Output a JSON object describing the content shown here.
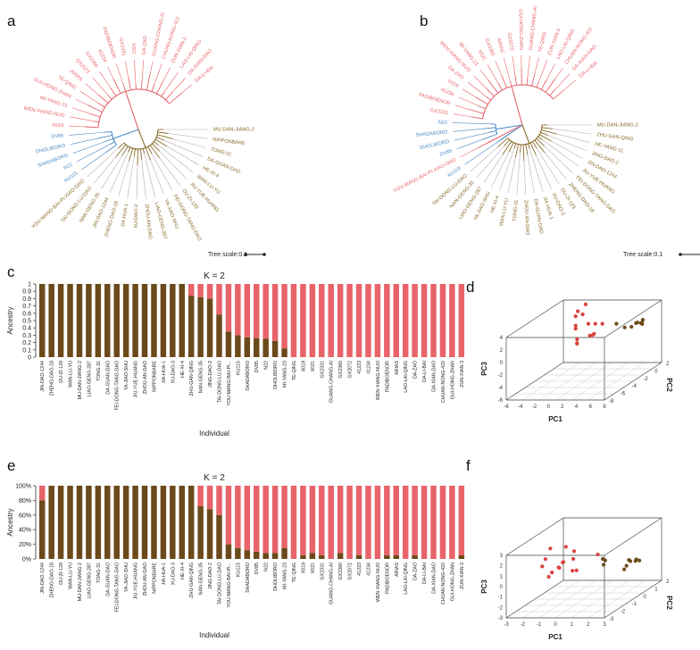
{
  "panels": {
    "a": "a",
    "b": "b",
    "c": "c",
    "d": "d",
    "e": "e",
    "f": "f"
  },
  "tree_scale_label": "Tree scale:0.1",
  "colors": {
    "red": "#e8636a",
    "brown": "#6b4a1a",
    "blue": "#4a8ac4",
    "tree_brown": "#8a6a2a",
    "grey": "#b0b0b0"
  },
  "tree_a": {
    "labels": [
      {
        "t": "MU-DAN-JIANG-2",
        "c": "brown"
      },
      {
        "t": "NIPPONBARE",
        "c": "brown"
      },
      {
        "t": "TONG-31",
        "c": "brown"
      },
      {
        "t": "DA-GUAN-DAO",
        "c": "brown"
      },
      {
        "t": "HE-XI-4",
        "c": "brown"
      },
      {
        "t": "WAN-LU-YU",
        "c": "brown"
      },
      {
        "t": "JIU-YUE-HUANG",
        "c": "brown"
      },
      {
        "t": "DU-ZI-129",
        "c": "brown"
      },
      {
        "t": "FEI-DONG-TANG-DAO",
        "c": "brown"
      },
      {
        "t": "YA-JIAO-SHU",
        "c": "brown"
      },
      {
        "t": "LIAO-GENG-287",
        "c": "brown"
      },
      {
        "t": "ZHOU-AN-DAO",
        "c": "brown"
      },
      {
        "t": "XU-DAO-3",
        "c": "brown"
      },
      {
        "t": "JIA-HUA-1",
        "c": "brown"
      },
      {
        "t": "ZHENG-DAO-18",
        "c": "brown"
      },
      {
        "t": "JIN-DAO-1244",
        "c": "brown"
      },
      {
        "t": "NAN-GENG-35",
        "c": "brown"
      },
      {
        "t": "TAI-DONG-LU-DAO",
        "c": "brown"
      },
      {
        "t": "YOU-MANG-BAI-PI-XIAO-DAO",
        "c": "brown"
      },
      {
        "t": "KU115",
        "c": "blue"
      },
      {
        "t": "N22",
        "c": "blue"
      },
      {
        "t": "SHADABORO",
        "c": "blue"
      },
      {
        "t": "DHOLIBORO",
        "c": "blue"
      },
      {
        "t": "DV85",
        "c": "blue"
      },
      {
        "t": "X019",
        "c": "red"
      },
      {
        "t": "WEN-XIANG-NUO",
        "c": "red"
      },
      {
        "t": "MI-YANG-23",
        "c": "red"
      },
      {
        "t": "GUI-HONG-ZHAN",
        "c": "red"
      },
      {
        "t": "TE-QING",
        "c": "red"
      },
      {
        "t": "ARIAS",
        "c": "red"
      },
      {
        "t": "GX2072",
        "c": "red"
      },
      {
        "t": "GX2360",
        "c": "red"
      },
      {
        "t": "41234",
        "c": "red"
      },
      {
        "t": "PADIBOENOR",
        "c": "red"
      },
      {
        "t": "GX2331",
        "c": "red"
      },
      {
        "t": "X021",
        "c": "red"
      },
      {
        "t": "DA-ZAO",
        "c": "red"
      },
      {
        "t": "GUANG-CHANG-AI",
        "c": "red"
      },
      {
        "t": "CHUAN-NONG-422",
        "c": "red"
      },
      {
        "t": "ZUN-XIAN-3",
        "c": "red"
      },
      {
        "t": "LAO-LAI-QING",
        "c": "red"
      },
      {
        "t": "DA-XIAN-DAO",
        "c": "red"
      },
      {
        "t": "DA-LI-BAI",
        "c": "red"
      }
    ]
  },
  "tree_b": {
    "labels": [
      {
        "t": "MU-DAN-JIANG-2",
        "c": "brown"
      },
      {
        "t": "ZHU-GAN-QING",
        "c": "brown"
      },
      {
        "t": "HE-YANG-11",
        "c": "brown"
      },
      {
        "t": "JING-DAO-2",
        "c": "brown"
      },
      {
        "t": "JIN-DAO-1244",
        "c": "brown"
      },
      {
        "t": "JIU-YUE-HUANG",
        "c": "brown"
      },
      {
        "t": "FEI-DONG-TANG-DAO",
        "c": "brown"
      },
      {
        "t": "ZHENG-DAO-18",
        "c": "brown"
      },
      {
        "t": "DU-ZI-129",
        "c": "brown"
      },
      {
        "t": "XU-DAO-3",
        "c": "brown"
      },
      {
        "t": "JIA-HUA-1",
        "c": "brown"
      },
      {
        "t": "DA-GUAN-DAO",
        "c": "brown"
      },
      {
        "t": "ZHOU-AN-DAO",
        "c": "brown"
      },
      {
        "t": "TONG-31",
        "c": "brown"
      },
      {
        "t": "WAN-LU-YU",
        "c": "brown"
      },
      {
        "t": "HE-XI-4",
        "c": "brown"
      },
      {
        "t": "YA-JIAO-SHU",
        "c": "brown"
      },
      {
        "t": "LIAO-GENG-287",
        "c": "brown"
      },
      {
        "t": "NAN-GENG-35",
        "c": "brown"
      },
      {
        "t": "TAI-DONG-LU-DAO",
        "c": "brown"
      },
      {
        "t": "KU115",
        "c": "blue"
      },
      {
        "t": "YOU-MANG-BAI-PI-XIAO-DAO",
        "c": "red"
      },
      {
        "t": "DV85",
        "c": "blue"
      },
      {
        "t": "DHOLIBORO",
        "c": "blue"
      },
      {
        "t": "SHADABORO",
        "c": "blue"
      },
      {
        "t": "N22",
        "c": "blue"
      },
      {
        "t": "GX2331",
        "c": "red"
      },
      {
        "t": "PADIBOENOR",
        "c": "red"
      },
      {
        "t": "41234",
        "c": "red"
      },
      {
        "t": "X019",
        "c": "red"
      },
      {
        "t": "DA-ZAO",
        "c": "red"
      },
      {
        "t": "WEN-XIANG-NUO",
        "c": "red"
      },
      {
        "t": "MI-YANG-23",
        "c": "red"
      },
      {
        "t": "X021",
        "c": "red"
      },
      {
        "t": "GX2360",
        "c": "red"
      },
      {
        "t": "ARIAS",
        "c": "red"
      },
      {
        "t": "GX2072",
        "c": "red"
      },
      {
        "t": "GUI-HONG-ZHAN",
        "c": "red"
      },
      {
        "t": "GUANG-CHANG-AI",
        "c": "red"
      },
      {
        "t": "TE-QING",
        "c": "red"
      },
      {
        "t": "ZUN-XIAN-3",
        "c": "red"
      },
      {
        "t": "LAO-LAI-QING",
        "c": "red"
      },
      {
        "t": "CHUAN-NONG-422",
        "c": "red"
      },
      {
        "t": "DA-XIAN-DAO",
        "c": "red"
      },
      {
        "t": "DA-LI-BAI",
        "c": "red"
      }
    ]
  },
  "chart_data": [
    {
      "panel": "c",
      "type": "bar",
      "stacked": true,
      "title": "K = 2",
      "xlabel": "Individual",
      "ylabel": "Ancestry",
      "ylim": [
        0,
        1
      ],
      "yticks": [
        "0",
        "0.1",
        "0.2",
        "0.3",
        "0.4",
        "0.5",
        "0.6",
        "0.7",
        "0.8",
        "0.9",
        "1"
      ],
      "categories": [
        "JIN-DAO-1244",
        "ZHENG-DAO-18",
        "DU-ZI-129",
        "WAN-LU-YU",
        "MU-DAN-JIANG-2",
        "LIAO-GENG-287",
        "TONG-31",
        "DA-GUAN-DAO",
        "FEI-DONG-TANG-DAO",
        "YA-JIAO-SHU",
        "JIU-YUE-HUANG",
        "ZHOU-AN-DAO",
        "NIPPONBARE",
        "JIA-HUA-1",
        "XU-DAO-3",
        "HE-XI-4",
        "ZHU-GAN-QING",
        "NAN-GENG-35",
        "JING-DAO-2",
        "TAI-DONG-LU-DAO",
        "YOU-MANG-BAI-PI...",
        "KU115",
        "SHADABORO",
        "DV85",
        "N22",
        "DHOLIBORO",
        "MI-YANG-23",
        "TE-QING",
        "X019",
        "X021",
        "GX2331",
        "GUANG-CHANG-AI",
        "GX2360",
        "GX2072",
        "41223",
        "41234",
        "WEN-XIANG-NUO",
        "PADIBOENOR",
        "ARIAS",
        "LAO-LAI-QING",
        "DA-ZAO",
        "DA-LI-BAI",
        "DA-XIAN-DAO",
        "CHUAN-NONG-422",
        "GUI-HONG-ZHAN",
        "ZUN-XIAN-3"
      ],
      "series": [
        {
          "name": "",
          "color": "#6b4a1a",
          "values": [
            1,
            1,
            1,
            1,
            1,
            1,
            1,
            1,
            1,
            1,
            1,
            1,
            1,
            1,
            1,
            1,
            0.84,
            0.82,
            0.8,
            0.58,
            0.35,
            0.3,
            0.27,
            0.26,
            0.25,
            0.22,
            0.12,
            0,
            0,
            0,
            0,
            0,
            0,
            0,
            0,
            0,
            0,
            0,
            0,
            0,
            0,
            0,
            0,
            0,
            0,
            0
          ]
        },
        {
          "name": "",
          "color": "#e8636a",
          "values": [
            0,
            0,
            0,
            0,
            0,
            0,
            0,
            0,
            0,
            0,
            0,
            0,
            0,
            0,
            0,
            0,
            0.16,
            0.18,
            0.2,
            0.42,
            0.65,
            0.7,
            0.73,
            0.74,
            0.75,
            0.78,
            0.88,
            1,
            1,
            1,
            1,
            1,
            1,
            1,
            1,
            1,
            1,
            1,
            1,
            1,
            1,
            1,
            1,
            1,
            1,
            1
          ]
        }
      ]
    },
    {
      "panel": "e",
      "type": "bar",
      "stacked": true,
      "title": "K = 2",
      "xlabel": "Individual",
      "ylabel": "Ancestry",
      "ylim": [
        0,
        100
      ],
      "yticks": [
        "0%",
        "20%",
        "40%",
        "60%",
        "80%",
        "100%"
      ],
      "categories": [
        "JIN-DAO-1244",
        "ZHENG-DAO-18",
        "DU-ZI-129",
        "WAN-LU-YU",
        "MU-DAN-JIANG-2",
        "LIAO-GENG-287",
        "TONG-31",
        "DA-GUAN-DAO",
        "FEI-DONG-TANG-DAO",
        "YA-JIAO-SHU",
        "JIU-YUE-HUANG",
        "ZHOU-AN-DAO",
        "NIPPONBARE",
        "JIA-HUA-1",
        "XU-DAO-3",
        "HE-XI-4",
        "ZHU-GAN-QING",
        "NAN-GENG-35",
        "JING-DAO-2",
        "TAI-DONG-LU-DAO",
        "YOU-MANG-BAI-PI...",
        "KU115",
        "SHADABORO",
        "DV85",
        "N22",
        "DHOLIBORO",
        "MI-YANG-23",
        "TE-QING",
        "X019",
        "X021",
        "GX2331",
        "GUANG-CHANG-AI",
        "GX2360",
        "GX2072",
        "41223",
        "41234",
        "WEN-XIANG-NUO",
        "PADIBOENOR",
        "ARIAS",
        "LAO-LAI-QING",
        "DA-ZAO",
        "DA-LI-BAI",
        "DA-XIAN-DAO",
        "CHUAN-NONG-422",
        "GUI-HONG-ZHAN",
        "ZUN-XIAN-3"
      ],
      "series": [
        {
          "name": "",
          "color": "#6b4a1a",
          "values": [
            80,
            100,
            100,
            100,
            100,
            100,
            100,
            100,
            100,
            100,
            100,
            100,
            100,
            100,
            100,
            100,
            100,
            72,
            68,
            60,
            20,
            15,
            12,
            10,
            8,
            8,
            15,
            0,
            5,
            8,
            5,
            0,
            8,
            0,
            5,
            0,
            0,
            5,
            5,
            0,
            5,
            0,
            0,
            0,
            0,
            5
          ]
        },
        {
          "name": "",
          "color": "#e8636a",
          "values": [
            20,
            0,
            0,
            0,
            0,
            0,
            0,
            0,
            0,
            0,
            0,
            0,
            0,
            0,
            0,
            0,
            0,
            28,
            32,
            40,
            80,
            85,
            88,
            90,
            92,
            92,
            85,
            100,
            95,
            92,
            95,
            100,
            92,
            100,
            95,
            100,
            100,
            95,
            95,
            100,
            95,
            100,
            100,
            100,
            100,
            95
          ]
        }
      ]
    },
    {
      "panel": "d",
      "type": "scatter",
      "xlabel": "PC1",
      "ylabel": "PC2",
      "zlabel": "PC3",
      "xticks": [
        "-6",
        "-4",
        "-2",
        "0",
        "2",
        "4",
        "6",
        "8"
      ],
      "yticks": [
        "-8",
        "-6",
        "-4",
        "-2",
        "0",
        "2"
      ],
      "zticks": [
        "-6",
        "-4",
        "-2",
        "0",
        "2",
        "4"
      ],
      "series": [
        {
          "name": "",
          "color": "#d9423e",
          "points": [
            [
              -1.5,
              -1,
              4
            ],
            [
              -1.2,
              0,
              4.5
            ],
            [
              -1,
              -2,
              3.8
            ],
            [
              -0.8,
              -1,
              3.5
            ],
            [
              -1.4,
              -1.5,
              2
            ],
            [
              -1,
              -2,
              1.8
            ],
            [
              -0.6,
              0,
              -0.5
            ],
            [
              -1.6,
              -1,
              -0.5
            ],
            [
              -1.2,
              -1.5,
              -0.8
            ],
            [
              -0.8,
              -2,
              -0.6
            ],
            [
              0,
              -1,
              2
            ],
            [
              1,
              -1,
              2
            ],
            [
              2,
              -1,
              2
            ],
            [
              0,
              0,
              -0.2
            ],
            [
              -1,
              1,
              -1
            ]
          ]
        },
        {
          "name": "",
          "color": "#6b4a1a",
          "points": [
            [
              4,
              -1,
              2
            ],
            [
              6,
              -2,
              2
            ],
            [
              7,
              -1,
              2.2
            ],
            [
              7.2,
              -1.5,
              2.4
            ],
            [
              7.5,
              -1,
              2.1
            ],
            [
              7.8,
              -1.2,
              2.3
            ],
            [
              8,
              -1.4,
              2.2
            ],
            [
              7.6,
              -0.8,
              2.5
            ],
            [
              6.8,
              -1.8,
              2
            ]
          ]
        }
      ]
    },
    {
      "panel": "f",
      "type": "scatter",
      "xlabel": "PC1",
      "ylabel": "PC2",
      "zlabel": "PC3",
      "xticks": [
        "-3",
        "-2",
        "-1",
        "0",
        "1",
        "2",
        "3"
      ],
      "yticks": [
        "-3",
        "-2",
        "-1",
        "0",
        "1",
        "2"
      ],
      "zticks": [
        "-3",
        "-2",
        "-1",
        "0",
        "1",
        "2",
        "3"
      ],
      "series": [
        {
          "name": "",
          "color": "#d9423e",
          "points": [
            [
              -2.4,
              0,
              1.5
            ],
            [
              -2,
              -1,
              1.2
            ],
            [
              -1.8,
              0.5,
              1.3
            ],
            [
              -2.2,
              -1,
              0.5
            ],
            [
              -1.6,
              0,
              0.2
            ],
            [
              -2,
              0.5,
              -0.2
            ],
            [
              -1.5,
              -0.5,
              0
            ],
            [
              -1.8,
              -1,
              -0.5
            ],
            [
              -2.3,
              0,
              -0.8
            ],
            [
              -1.4,
              0.5,
              -1
            ],
            [
              -1,
              0,
              0.5
            ],
            [
              -0.6,
              -0.5,
              1.6
            ],
            [
              -0.8,
              0,
              -0.6
            ],
            [
              -0.2,
              1,
              0.2
            ],
            [
              -1.2,
              -1,
              0.4
            ]
          ]
        },
        {
          "name": "",
          "color": "#6b4a1a",
          "points": [
            [
              0.8,
              0,
              0.5
            ],
            [
              1.2,
              -0.5,
              0.3
            ],
            [
              0.6,
              0.5,
              0
            ],
            [
              2.4,
              0,
              0.4
            ],
            [
              2.6,
              -0.5,
              0.2
            ],
            [
              2.8,
              0,
              0.3
            ],
            [
              2.5,
              0.5,
              0.1
            ],
            [
              2.7,
              -0.3,
              0.5
            ],
            [
              2.9,
              0.2,
              0.2
            ],
            [
              2.6,
              -0.7,
              0
            ]
          ]
        }
      ]
    }
  ]
}
